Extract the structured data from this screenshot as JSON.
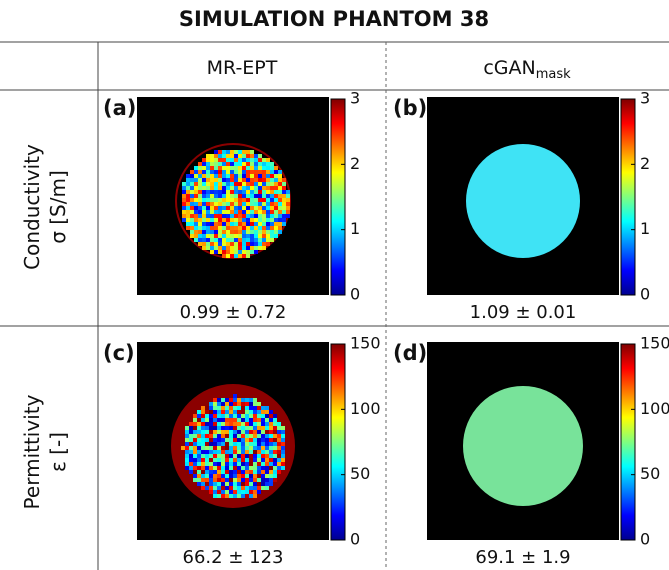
{
  "title": "SIMULATION PHANTOM 38",
  "columns": [
    {
      "text": "MR-EPT"
    },
    {
      "text": "cGAN",
      "subscript": "mask"
    }
  ],
  "rows": [
    {
      "label": [
        "Conductivity",
        "σ [S/m]"
      ],
      "colorbar_ticks": [
        "3",
        "2",
        "1",
        "0"
      ],
      "panels": [
        {
          "label": "(a)",
          "stats": "0.99 ± 0.72"
        },
        {
          "label": "(b)",
          "stats": "1.09 ± 0.01"
        }
      ]
    },
    {
      "label": [
        "Permittivity",
        "ε [-]"
      ],
      "colorbar_ticks": [
        "150",
        "100",
        "50",
        "0"
      ],
      "panels": [
        {
          "label": "(c)",
          "stats": "66.2 ± 123"
        },
        {
          "label": "(d)",
          "stats": "69.1 ± 1.9"
        }
      ]
    }
  ]
}
